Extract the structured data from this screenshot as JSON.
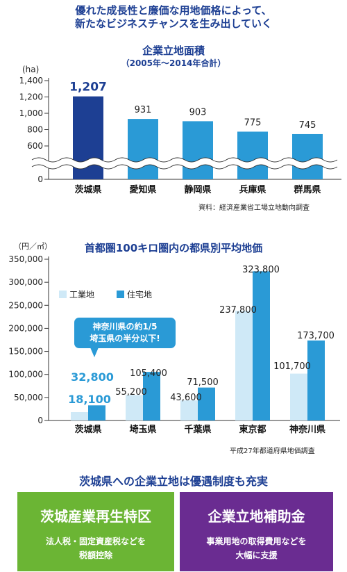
{
  "headline": {
    "line1": "優れた成長性と廉価な用地価格によって、",
    "line2": "新たなビジネスチャンスを生み出していく"
  },
  "colors": {
    "navy": "#1d3f93",
    "light_blue": "#2a9ad6",
    "pale_blue": "#cfe9f7",
    "green": "#6bb534",
    "purple": "#6a2c91"
  },
  "chart_data": [
    {
      "type": "bar",
      "title": "企業立地面積",
      "subtitle": "（2005年〜2014年合計）",
      "ylabel": "(ha)",
      "categories": [
        "茨城県",
        "愛知県",
        "静岡県",
        "兵庫県",
        "群馬県"
      ],
      "values": [
        1207,
        931,
        903,
        775,
        745
      ],
      "value_labels": [
        "1,207",
        "931",
        "903",
        "775",
        "745"
      ],
      "yticks": [
        "1,400",
        "1,200",
        "1,000",
        "800",
        "600",
        "0"
      ],
      "ylim": [
        0,
        1400
      ],
      "axis_break": "between 0 and 600",
      "source": "資料：経済産業省工場立地動向調査"
    },
    {
      "type": "bar",
      "title": "首都圏100キロ圏内の都県別平均地価",
      "ylabel": "（円／㎡）",
      "categories": [
        "茨城県",
        "埼玉県",
        "千葉県",
        "東京都",
        "神奈川県"
      ],
      "series": [
        {
          "name": "工業地",
          "values": [
            18100,
            55200,
            43600,
            237800,
            101700
          ],
          "labels": [
            "18,100",
            "55,200",
            "43,600",
            "237,800",
            "101,700"
          ]
        },
        {
          "name": "住宅地",
          "values": [
            32800,
            105400,
            71500,
            323800,
            173700
          ],
          "labels": [
            "32,800",
            "105,400",
            "71,500",
            "323,800",
            "173,700"
          ]
        }
      ],
      "yticks": [
        "350,000",
        "300,000",
        "250,000",
        "200,000",
        "150,000",
        "100,000",
        "50,000",
        "0"
      ],
      "ylim": [
        0,
        350000
      ],
      "legend": "top-left",
      "callout": {
        "line1": "神奈川県の約1/5",
        "line2": "埼玉県の半分以下!"
      },
      "source": "平成27年都道府県地価調査"
    }
  ],
  "footer": {
    "title": "茨城県への企業立地は優遇制度も充実",
    "boxes": [
      {
        "title": "茨城産業再生特区",
        "line1": "法人税・固定資産税などを",
        "line2": "税額控除"
      },
      {
        "title": "企業立地補助金",
        "line1": "事業用地の取得費用などを",
        "line2": "大幅に支援"
      }
    ]
  }
}
